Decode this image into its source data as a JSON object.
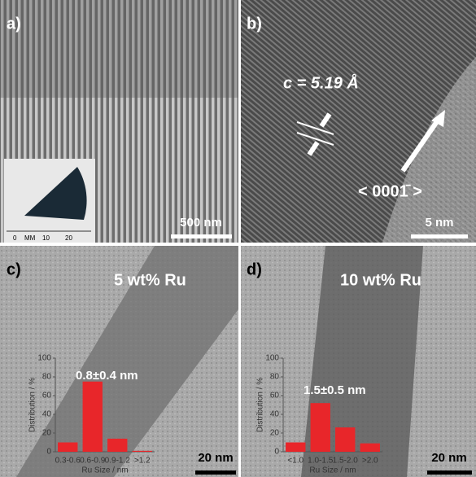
{
  "panels": [
    {
      "label": "a)",
      "scale_bar": "500 nm",
      "ruler": [
        "0",
        "MM",
        "10",
        "20"
      ]
    },
    {
      "label": "b)",
      "lattice_spacing": "c = 5.19 Å",
      "direction": "< 0001̄ >",
      "scale_bar": "5 nm"
    },
    {
      "label": "c)",
      "loading": "5 wt% Ru",
      "scale_bar": "20 nm"
    },
    {
      "label": "d)",
      "loading": "10 wt% Ru",
      "scale_bar": "20 nm"
    }
  ],
  "chart_data": [
    {
      "type": "bar",
      "categories": [
        "0.3-0.6",
        "0.6-0.9",
        "0.9-1.2",
        ">1.2"
      ],
      "values": [
        10,
        75,
        14,
        1
      ],
      "color": "#e8262a",
      "ylim": [
        0,
        100
      ],
      "yticks": [
        0,
        20,
        40,
        60,
        80,
        100
      ],
      "ylabel": "Distribution / %",
      "xlabel": "Ru Size / nm",
      "annotation": "0.8±0.4 nm"
    },
    {
      "type": "bar",
      "categories": [
        "<1.0",
        "1.0-1.5",
        "1.5-2.0",
        ">2.0"
      ],
      "values": [
        10,
        52,
        26,
        9
      ],
      "color": "#e8262a",
      "ylim": [
        0,
        100
      ],
      "yticks": [
        0,
        20,
        40,
        60,
        80,
        100
      ],
      "ylabel": "Distribution / %",
      "xlabel": "Ru Size / nm",
      "annotation": "1.5±0.5 nm"
    }
  ]
}
